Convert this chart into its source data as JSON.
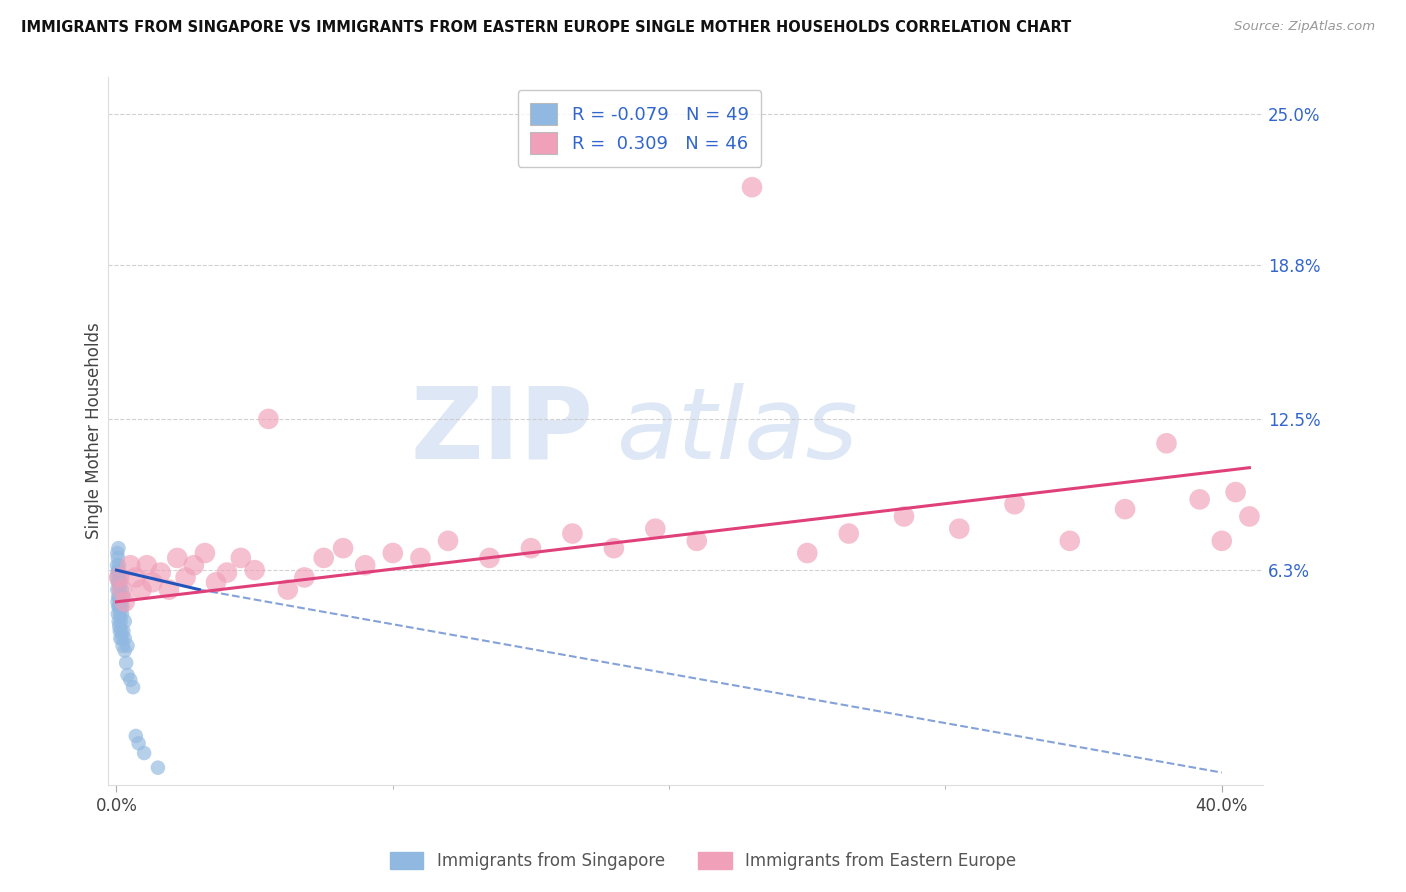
{
  "title": "IMMIGRANTS FROM SINGAPORE VS IMMIGRANTS FROM EASTERN EUROPE SINGLE MOTHER HOUSEHOLDS CORRELATION CHART",
  "source": "Source: ZipAtlas.com",
  "ylabel": "Single Mother Households",
  "xlim": [
    -0.003,
    0.415
  ],
  "ylim": [
    -0.025,
    0.265
  ],
  "xtick_vals": [
    0.0,
    0.4
  ],
  "xticklabels": [
    "0.0%",
    "40.0%"
  ],
  "ytick_positions": [
    0.063,
    0.125,
    0.188,
    0.25
  ],
  "ytick_labels": [
    "6.3%",
    "12.5%",
    "18.8%",
    "25.0%"
  ],
  "grid_color": "#cccccc",
  "bg_color": "#ffffff",
  "series1_color": "#90b8e0",
  "series2_color": "#f0a0b8",
  "series1_label": "Immigrants from Singapore",
  "series2_label": "Immigrants from Eastern Europe",
  "series1_R": -0.079,
  "series1_N": 49,
  "series2_R": 0.309,
  "series2_N": 46,
  "legend_text_color": "#3366cc",
  "watermark_zip": "ZIP",
  "watermark_atlas": "atlas",
  "s1x": [
    0.0002,
    0.0002,
    0.0003,
    0.0003,
    0.0004,
    0.0004,
    0.0005,
    0.0005,
    0.0005,
    0.0006,
    0.0006,
    0.0007,
    0.0007,
    0.0008,
    0.0008,
    0.0009,
    0.0009,
    0.001,
    0.001,
    0.001,
    0.0012,
    0.0012,
    0.0013,
    0.0013,
    0.0014,
    0.0015,
    0.0015,
    0.0016,
    0.0018,
    0.0018,
    0.002,
    0.002,
    0.002,
    0.0022,
    0.0022,
    0.0025,
    0.0025,
    0.003,
    0.003,
    0.003,
    0.0035,
    0.004,
    0.004,
    0.005,
    0.006,
    0.007,
    0.008,
    0.01,
    0.015
  ],
  "s1y": [
    0.06,
    0.065,
    0.055,
    0.07,
    0.05,
    0.062,
    0.045,
    0.058,
    0.068,
    0.052,
    0.063,
    0.048,
    0.072,
    0.042,
    0.058,
    0.048,
    0.065,
    0.04,
    0.052,
    0.062,
    0.038,
    0.055,
    0.045,
    0.06,
    0.035,
    0.048,
    0.058,
    0.042,
    0.038,
    0.05,
    0.035,
    0.045,
    0.055,
    0.032,
    0.048,
    0.038,
    0.052,
    0.03,
    0.042,
    0.035,
    0.025,
    0.032,
    0.02,
    0.018,
    0.015,
    -0.005,
    -0.008,
    -0.012,
    -0.018
  ],
  "s2x": [
    0.001,
    0.002,
    0.003,
    0.005,
    0.007,
    0.009,
    0.011,
    0.013,
    0.016,
    0.019,
    0.022,
    0.025,
    0.028,
    0.032,
    0.036,
    0.04,
    0.045,
    0.05,
    0.055,
    0.062,
    0.068,
    0.075,
    0.082,
    0.09,
    0.1,
    0.11,
    0.12,
    0.135,
    0.15,
    0.165,
    0.18,
    0.195,
    0.21,
    0.23,
    0.25,
    0.265,
    0.285,
    0.305,
    0.325,
    0.345,
    0.365,
    0.38,
    0.392,
    0.4,
    0.405,
    0.41
  ],
  "s2y": [
    0.06,
    0.055,
    0.05,
    0.065,
    0.06,
    0.055,
    0.065,
    0.058,
    0.062,
    0.055,
    0.068,
    0.06,
    0.065,
    0.07,
    0.058,
    0.062,
    0.068,
    0.063,
    0.125,
    0.055,
    0.06,
    0.068,
    0.072,
    0.065,
    0.07,
    0.068,
    0.075,
    0.068,
    0.072,
    0.078,
    0.072,
    0.08,
    0.075,
    0.22,
    0.07,
    0.078,
    0.085,
    0.08,
    0.09,
    0.075,
    0.088,
    0.115,
    0.092,
    0.075,
    0.095,
    0.085
  ]
}
